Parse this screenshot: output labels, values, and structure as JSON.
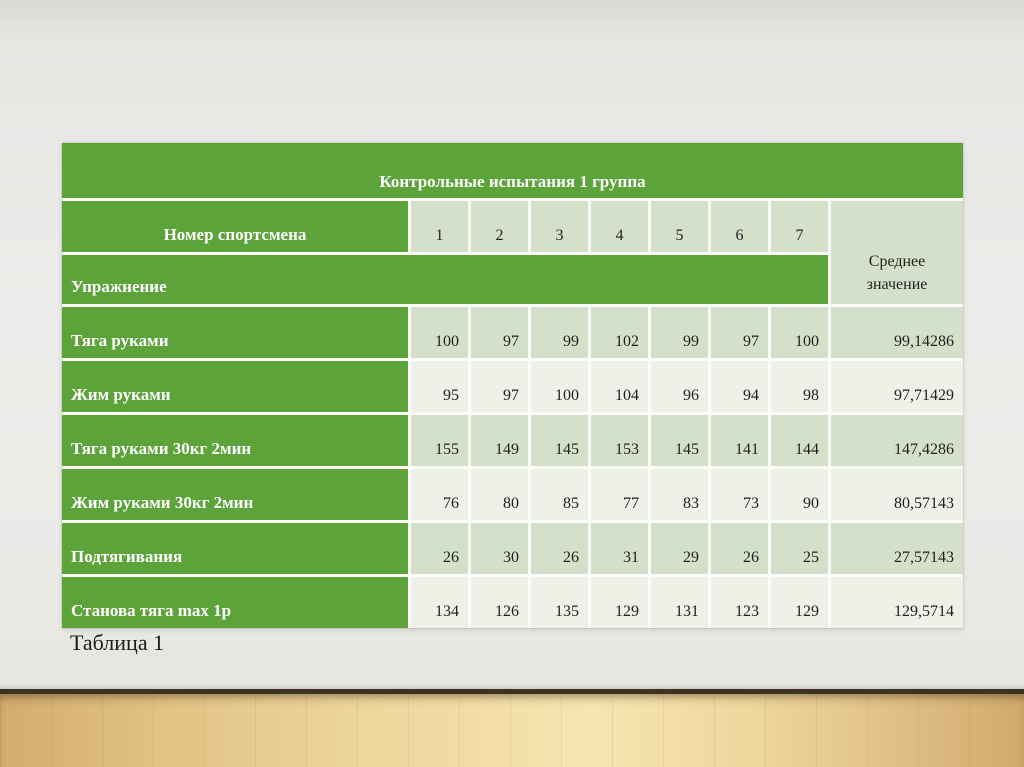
{
  "table": {
    "title": "Контрольные испытания 1 группа",
    "athlete_header": "Номер спортсмена",
    "exercise_header": "Упражнение",
    "avg_header": "Среднее значение",
    "col_numbers": [
      "1",
      "2",
      "3",
      "4",
      "5",
      "6",
      "7"
    ],
    "rows": [
      {
        "label": "Тяга руками",
        "values": [
          "100",
          "97",
          "99",
          "102",
          "99",
          "97",
          "100"
        ],
        "avg": "99,14286"
      },
      {
        "label": "Жим руками",
        "values": [
          "95",
          "97",
          "100",
          "104",
          "96",
          "94",
          "98"
        ],
        "avg": "97,71429"
      },
      {
        "label": "Тяга руками 30кг 2мин",
        "values": [
          "155",
          "149",
          "145",
          "153",
          "145",
          "141",
          "144"
        ],
        "avg": "147,4286"
      },
      {
        "label": "Жим руками 30кг 2мин",
        "values": [
          "76",
          "80",
          "85",
          "77",
          "83",
          "73",
          "90"
        ],
        "avg": "80,57143"
      },
      {
        "label": "Подтягивания",
        "values": [
          "26",
          "30",
          "26",
          "31",
          "29",
          "26",
          "25"
        ],
        "avg": "27,57143"
      },
      {
        "label": "Станова тяга max 1р",
        "values": [
          "134",
          "126",
          "135",
          "129",
          "131",
          "123",
          "129"
        ],
        "avg": "129,5714"
      }
    ]
  },
  "caption": "Таблица 1",
  "colors": {
    "header_green": "#5ca33a",
    "band_dark": "#d5e0cb",
    "band_light": "#edf1e8",
    "wall": "#ebeae7",
    "floor_wood": "#eed69c",
    "floor_line": "#3a3323"
  },
  "chart_data": {
    "type": "table",
    "title": "Контрольные испытания 1 группа",
    "categories": [
      "1",
      "2",
      "3",
      "4",
      "5",
      "6",
      "7"
    ],
    "row_header": "Номер спортсмена",
    "col1_header": "Упражнение",
    "avg_header": "Среднее значение",
    "series": [
      {
        "name": "Тяга руками",
        "values": [
          100,
          97,
          99,
          102,
          99,
          97,
          100
        ],
        "average": 99.14286
      },
      {
        "name": "Жим руками",
        "values": [
          95,
          97,
          100,
          104,
          96,
          94,
          98
        ],
        "average": 97.71429
      },
      {
        "name": "Тяга руками 30кг 2мин",
        "values": [
          155,
          149,
          145,
          153,
          145,
          141,
          144
        ],
        "average": 147.4286
      },
      {
        "name": "Жим руками 30кг 2мин",
        "values": [
          76,
          80,
          85,
          77,
          83,
          73,
          90
        ],
        "average": 80.57143
      },
      {
        "name": "Подтягивания",
        "values": [
          26,
          30,
          26,
          31,
          29,
          26,
          25
        ],
        "average": 27.57143
      },
      {
        "name": "Станова тяга max 1р",
        "values": [
          134,
          126,
          135,
          129,
          131,
          123,
          129
        ],
        "average": 129.5714
      }
    ]
  }
}
